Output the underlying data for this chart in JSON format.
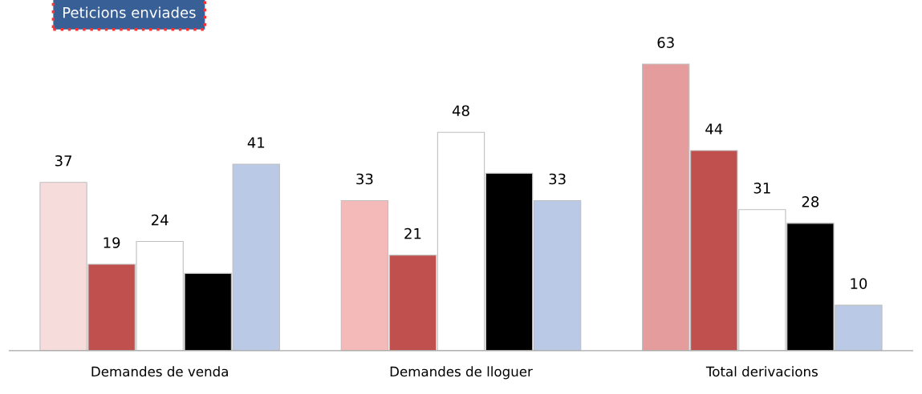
{
  "chart_data": {
    "type": "bar",
    "title": "Peticions enviades",
    "categories": [
      "Demandes de venda",
      "Demandes de lloguer",
      "Total derivacions"
    ],
    "series": [
      {
        "colors": [
          "#f7dcdc",
          "#f4b9b9",
          "#e49c9c"
        ],
        "values": [
          37,
          33,
          63
        ],
        "value_labels": [
          "37",
          "33",
          "63"
        ]
      },
      {
        "color": "#c0504d",
        "values": [
          19,
          21,
          44
        ],
        "value_labels": [
          "19",
          "21",
          "44"
        ]
      },
      {
        "color": "#ffffff",
        "values": [
          24,
          48,
          31
        ],
        "value_labels": [
          "24",
          "48",
          "31"
        ]
      },
      {
        "color": "#000000",
        "values": [
          17,
          39,
          28
        ],
        "value_labels": [
          null,
          null,
          "28"
        ]
      },
      {
        "color": "#b9c9e6",
        "values": [
          41,
          33,
          10
        ],
        "value_labels": [
          "41",
          "33",
          "10"
        ]
      }
    ],
    "grid": false,
    "legend": false,
    "tick_labels": "x"
  }
}
